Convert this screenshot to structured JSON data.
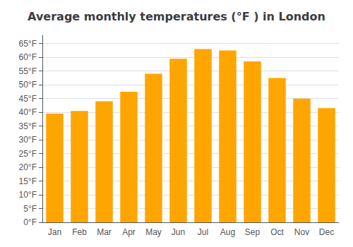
{
  "chart_data": {
    "type": "bar",
    "title": "Average monthly temperatures (°F ) in London",
    "categories": [
      "Jan",
      "Feb",
      "Mar",
      "Apr",
      "May",
      "Jun",
      "Jul",
      "Aug",
      "Sep",
      "Oct",
      "Nov",
      "Dec"
    ],
    "values": [
      39.5,
      40.5,
      44.0,
      47.5,
      54.0,
      59.5,
      63.0,
      62.5,
      58.5,
      52.5,
      45.0,
      41.5
    ],
    "color": "#FFA500",
    "ylim": [
      0,
      68
    ],
    "yticks": [
      {
        "value": 0,
        "label": "0°F"
      },
      {
        "value": 5,
        "label": "5°F"
      },
      {
        "value": 10,
        "label": "10°F"
      },
      {
        "value": 15,
        "label": "15°F"
      },
      {
        "value": 20,
        "label": "20°F"
      },
      {
        "value": 25,
        "label": "25°F"
      },
      {
        "value": 30,
        "label": "30°F"
      },
      {
        "value": 35,
        "label": "35°F"
      },
      {
        "value": 40,
        "label": "40°F"
      },
      {
        "value": 45,
        "label": "45°F"
      },
      {
        "value": 50,
        "label": "50°F"
      },
      {
        "value": 55,
        "label": "55°F"
      },
      {
        "value": 60,
        "label": "60°F"
      },
      {
        "value": 65,
        "label": "65°F"
      }
    ],
    "grid": true
  }
}
